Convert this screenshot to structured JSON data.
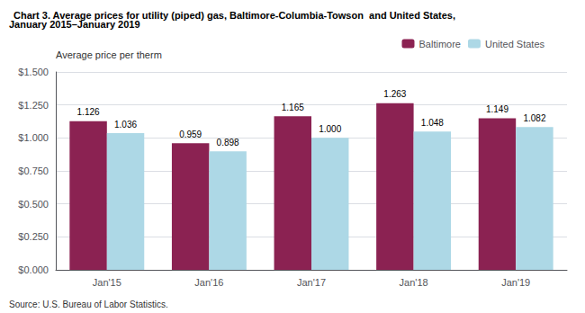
{
  "chart_data": {
    "type": "bar",
    "title": "Chart 3. Average prices for utility (piped) gas, Baltimore-Columbia-Towson  and United States,",
    "subtitle": "January 2015–January 2019",
    "ylabel": "Average price per therm",
    "annotations": [
      "Source: U.S. Bureau of Labor Statistics."
    ],
    "categories": [
      "Jan'15",
      "Jan'16",
      "Jan'17",
      "Jan'18",
      "Jan'19"
    ],
    "series": [
      {
        "name": "Baltimore",
        "color": "#8B2252",
        "values": [
          1.126,
          0.959,
          1.165,
          1.263,
          1.149
        ],
        "value_labels": [
          "1.126",
          "0.959",
          "1.165",
          "1.263",
          "1.149"
        ]
      },
      {
        "name": "United States",
        "color": "#ADD8E6",
        "values": [
          1.036,
          0.898,
          1.0,
          1.048,
          1.082
        ],
        "value_labels": [
          "1.036",
          "0.898",
          "1.000",
          "1.048",
          "1.082"
        ]
      }
    ],
    "ylim": [
      0.0,
      1.5
    ],
    "yticks": [
      {
        "value": 0.0,
        "label": "$0.000"
      },
      {
        "value": 0.25,
        "label": "$0.250"
      },
      {
        "value": 0.5,
        "label": "$0.500"
      },
      {
        "value": 0.75,
        "label": "$0.750"
      },
      {
        "value": 1.0,
        "label": "$1.000"
      },
      {
        "value": 1.25,
        "label": "$1.250"
      },
      {
        "value": 1.5,
        "label": "$1.500"
      }
    ],
    "grid": true,
    "legend": "top",
    "data_labels": true
  }
}
